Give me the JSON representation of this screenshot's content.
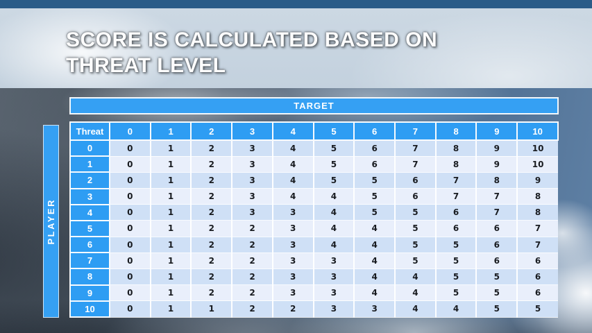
{
  "slide": {
    "title": "SCORE IS CALCULATED BASED ON THREAT LEVEL"
  },
  "matrix": {
    "target_label": "TARGET",
    "player_label": "PLAYER",
    "threat_label": "Threat",
    "target_levels": [
      "0",
      "1",
      "2",
      "3",
      "4",
      "5",
      "6",
      "7",
      "8",
      "9",
      "10"
    ],
    "rows": [
      {
        "threat": "0",
        "scores": [
          "0",
          "1",
          "2",
          "3",
          "4",
          "5",
          "6",
          "7",
          "8",
          "9",
          "10"
        ]
      },
      {
        "threat": "1",
        "scores": [
          "0",
          "1",
          "2",
          "3",
          "4",
          "5",
          "6",
          "7",
          "8",
          "9",
          "10"
        ]
      },
      {
        "threat": "2",
        "scores": [
          "0",
          "1",
          "2",
          "3",
          "4",
          "5",
          "5",
          "6",
          "7",
          "8",
          "9"
        ]
      },
      {
        "threat": "3",
        "scores": [
          "0",
          "1",
          "2",
          "3",
          "4",
          "4",
          "5",
          "6",
          "7",
          "7",
          "8"
        ]
      },
      {
        "threat": "4",
        "scores": [
          "0",
          "1",
          "2",
          "3",
          "3",
          "4",
          "5",
          "5",
          "6",
          "7",
          "8"
        ]
      },
      {
        "threat": "5",
        "scores": [
          "0",
          "1",
          "2",
          "2",
          "3",
          "4",
          "4",
          "5",
          "6",
          "6",
          "7"
        ]
      },
      {
        "threat": "6",
        "scores": [
          "0",
          "1",
          "2",
          "2",
          "3",
          "4",
          "4",
          "5",
          "5",
          "6",
          "7"
        ]
      },
      {
        "threat": "7",
        "scores": [
          "0",
          "1",
          "2",
          "2",
          "3",
          "3",
          "4",
          "5",
          "5",
          "6",
          "6"
        ]
      },
      {
        "threat": "8",
        "scores": [
          "0",
          "1",
          "2",
          "2",
          "3",
          "3",
          "4",
          "4",
          "5",
          "5",
          "6"
        ]
      },
      {
        "threat": "9",
        "scores": [
          "0",
          "1",
          "2",
          "2",
          "3",
          "3",
          "4",
          "4",
          "5",
          "5",
          "6"
        ]
      },
      {
        "threat": "10",
        "scores": [
          "0",
          "1",
          "1",
          "2",
          "2",
          "3",
          "3",
          "4",
          "4",
          "5",
          "5"
        ]
      }
    ]
  },
  "chart_data": {
    "type": "table",
    "title": "Score is calculated based on threat level",
    "row_axis": "PLAYER (Threat)",
    "column_axis": "TARGET",
    "columns": [
      0,
      1,
      2,
      3,
      4,
      5,
      6,
      7,
      8,
      9,
      10
    ],
    "rows": [
      {
        "threat": 0,
        "values": [
          0,
          1,
          2,
          3,
          4,
          5,
          6,
          7,
          8,
          9,
          10
        ]
      },
      {
        "threat": 1,
        "values": [
          0,
          1,
          2,
          3,
          4,
          5,
          6,
          7,
          8,
          9,
          10
        ]
      },
      {
        "threat": 2,
        "values": [
          0,
          1,
          2,
          3,
          4,
          5,
          5,
          6,
          7,
          8,
          9
        ]
      },
      {
        "threat": 3,
        "values": [
          0,
          1,
          2,
          3,
          4,
          4,
          5,
          6,
          7,
          7,
          8
        ]
      },
      {
        "threat": 4,
        "values": [
          0,
          1,
          2,
          3,
          3,
          4,
          5,
          5,
          6,
          7,
          8
        ]
      },
      {
        "threat": 5,
        "values": [
          0,
          1,
          2,
          2,
          3,
          4,
          4,
          5,
          6,
          6,
          7
        ]
      },
      {
        "threat": 6,
        "values": [
          0,
          1,
          2,
          2,
          3,
          4,
          4,
          5,
          5,
          6,
          7
        ]
      },
      {
        "threat": 7,
        "values": [
          0,
          1,
          2,
          2,
          3,
          3,
          4,
          5,
          5,
          6,
          6
        ]
      },
      {
        "threat": 8,
        "values": [
          0,
          1,
          2,
          2,
          3,
          3,
          4,
          4,
          5,
          5,
          6
        ]
      },
      {
        "threat": 9,
        "values": [
          0,
          1,
          2,
          2,
          3,
          3,
          4,
          4,
          5,
          5,
          6
        ]
      },
      {
        "threat": 10,
        "values": [
          0,
          1,
          1,
          2,
          2,
          3,
          3,
          4,
          4,
          5,
          5
        ]
      }
    ]
  },
  "colors": {
    "accent_blue": "#2E9DF3",
    "header_text": "#FFFFFF",
    "row_even": "#CFE0F6",
    "row_odd": "#E9EFFB",
    "cell_text": "#191C21",
    "top_strip": "#2B5C88",
    "title_band": "#C8D5E1",
    "title_text": "#FDFDFD"
  }
}
